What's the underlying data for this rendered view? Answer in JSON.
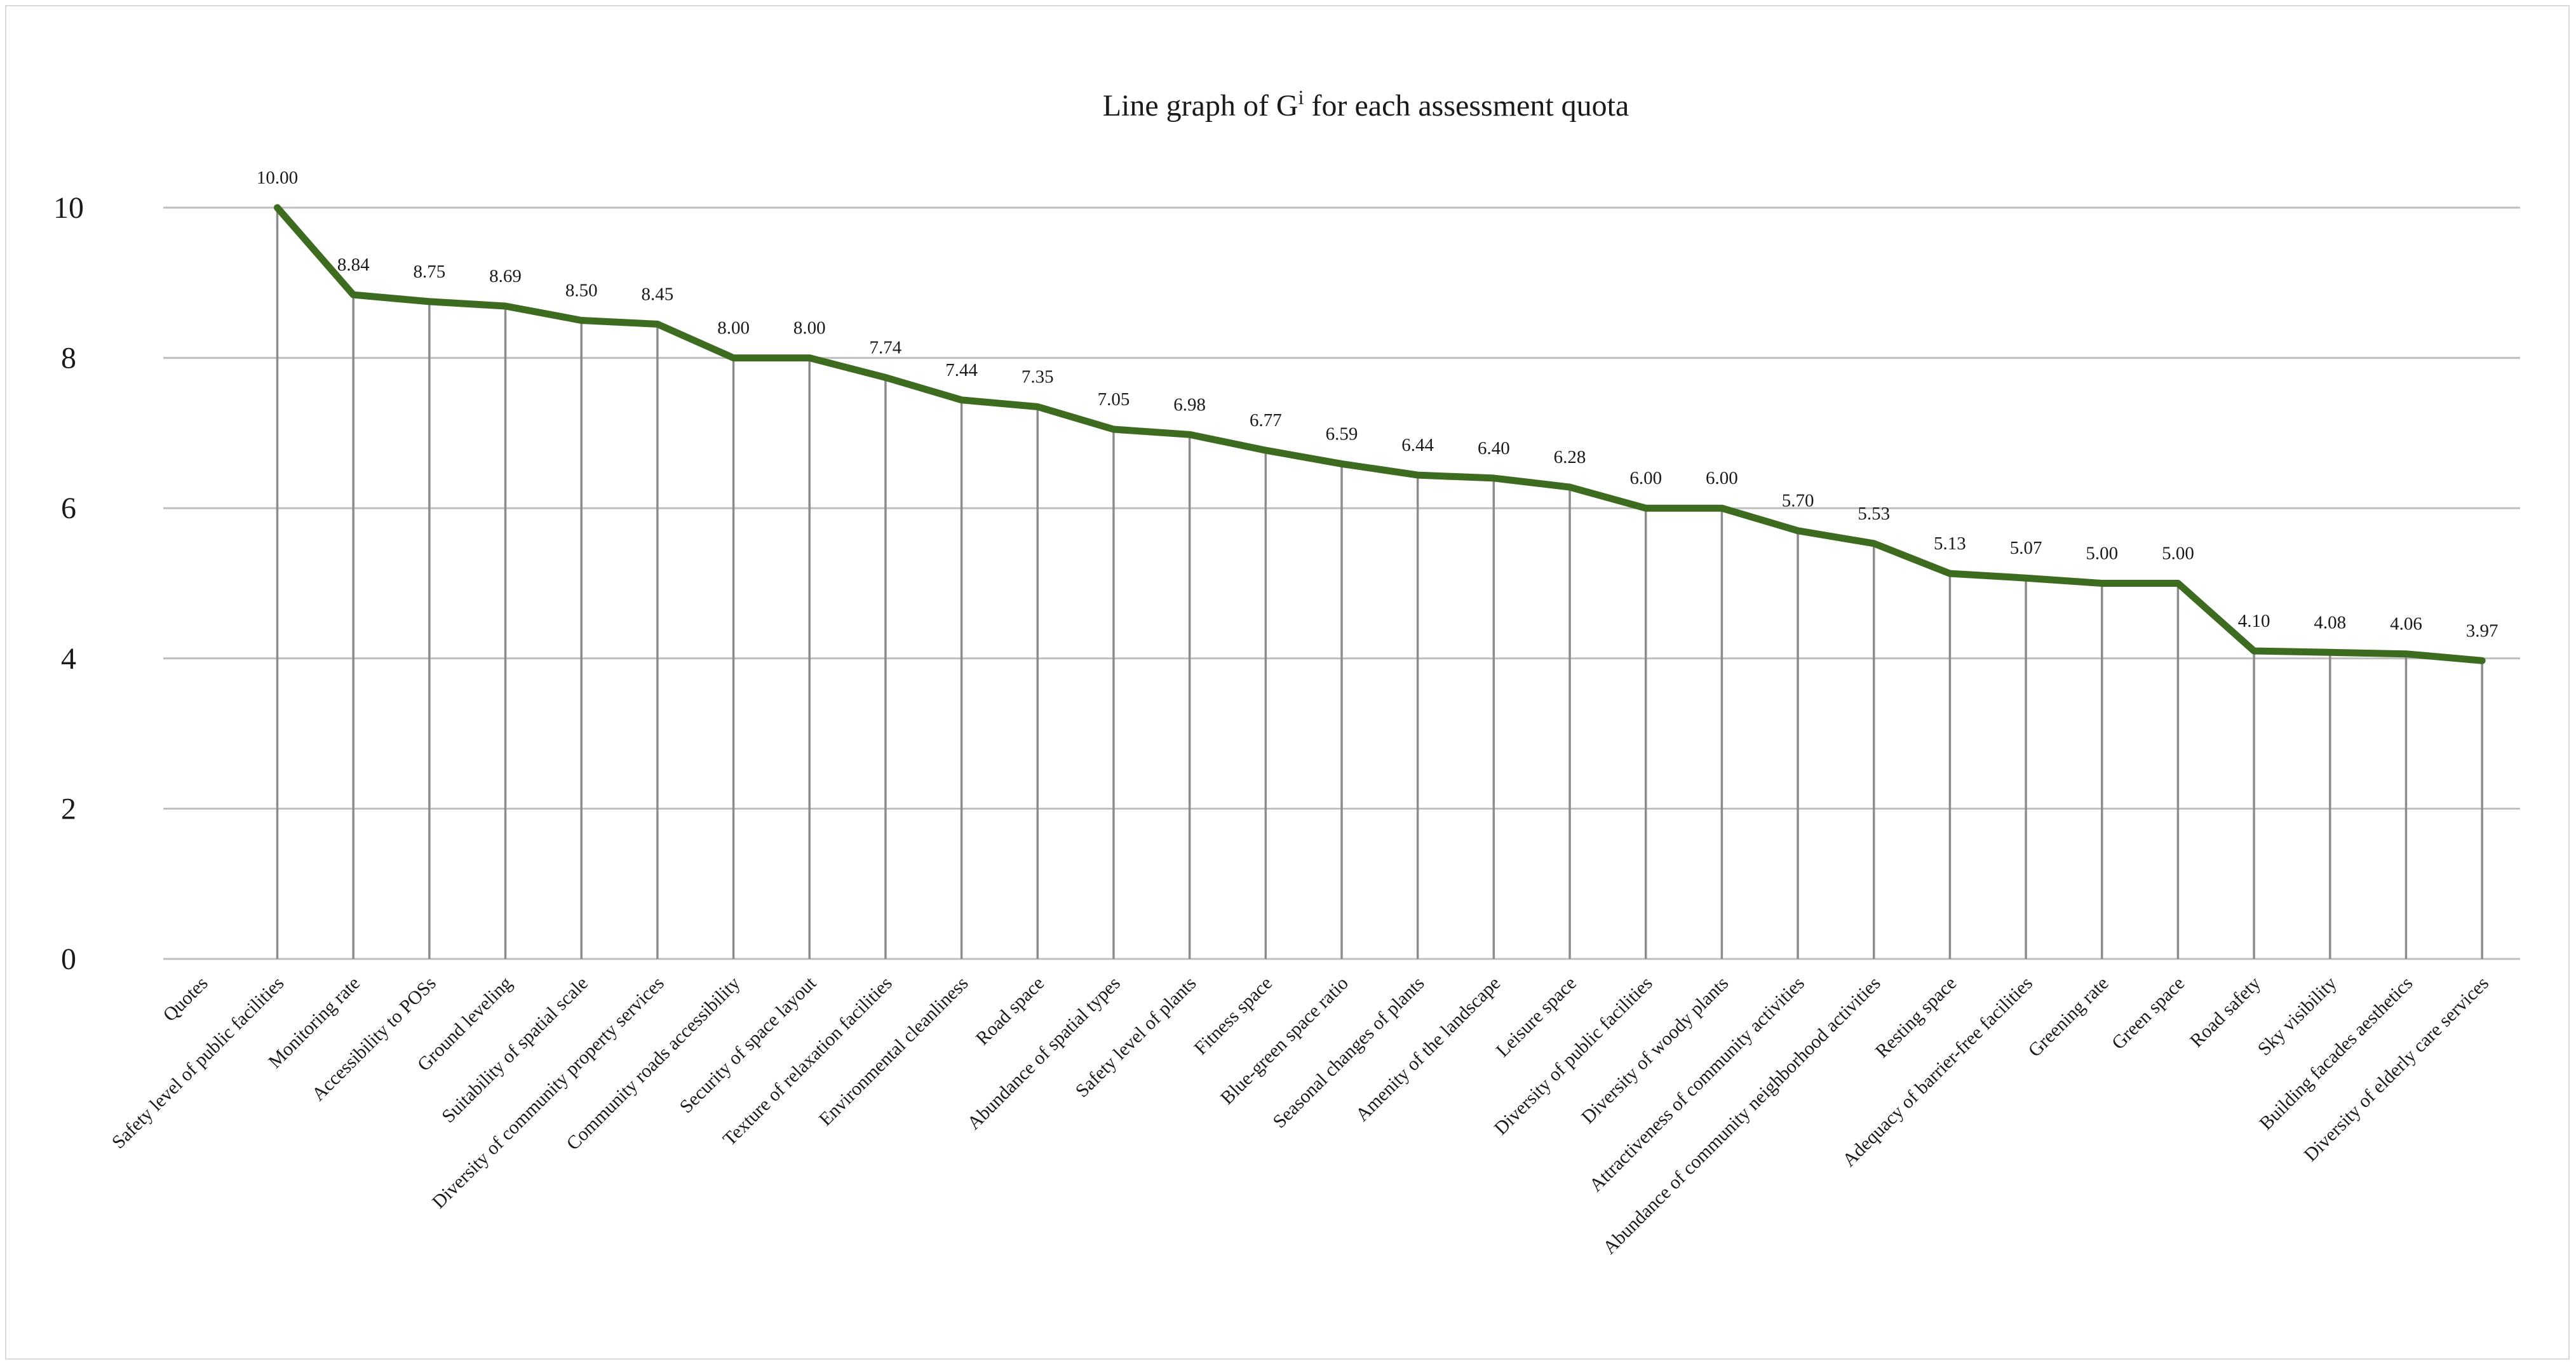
{
  "chart_data": {
    "type": "line",
    "title": "Line graph of  G",
    "title_superscript": "i",
    "title_suffix": "  for each assessment quota",
    "xlabel": "",
    "ylabel": "",
    "ylim": [
      0,
      10
    ],
    "yticks": [
      "0",
      "2",
      "4",
      "6",
      "8",
      "10"
    ],
    "grid": true,
    "legend": "none",
    "line_color": "#3d6b1f",
    "categories": [
      "Quotes",
      "Safety level of public facilities",
      "Monitoring rate",
      "Accessibility to POSs",
      "Ground leveling",
      "Suitability of spatial scale",
      "Diversity of community property services",
      "Community roads accessibility",
      "Security of space layout",
      "Texture of relaxation facilities",
      "Environmental cleanliness",
      "Road space",
      "Abundance of spatial types",
      "Safety level of plants",
      "Fitness space",
      "Blue-green space ratio",
      "Seasonal changes of plants",
      "Amenity of the landscape",
      "Leisure space",
      "Diversity of public facilities",
      "Diversity of woody plants",
      "Attractiveness of community activities",
      "Abundance of community neighborhood activities",
      "Resting space",
      "Adequacy of barrier-free facilities",
      "Greening rate",
      "Green space",
      "Road safety",
      "Sky visibility",
      "Building facades aesthetics",
      "Diversity of elderly care services"
    ],
    "values": [
      null,
      10.0,
      8.84,
      8.75,
      8.69,
      8.5,
      8.45,
      8.0,
      8.0,
      7.74,
      7.44,
      7.35,
      7.05,
      6.98,
      6.77,
      6.59,
      6.44,
      6.4,
      6.28,
      6.0,
      6.0,
      5.7,
      5.53,
      5.13,
      5.07,
      5.0,
      5.0,
      4.1,
      4.08,
      4.06,
      3.97
    ],
    "data_labels": [
      "",
      "10.00",
      "8.84",
      "8.75",
      "8.69",
      "8.50",
      "8.45",
      "8.00",
      "8.00",
      "7.74",
      "7.44",
      "7.35",
      "7.05",
      "6.98",
      "6.77",
      "6.59",
      "6.44",
      "6.40",
      "6.28",
      "6.00",
      "6.00",
      "5.70",
      "5.53",
      "5.13",
      "5.07",
      "5.00",
      "5.00",
      "4.10",
      "4.08",
      "4.06",
      "3.97"
    ]
  }
}
